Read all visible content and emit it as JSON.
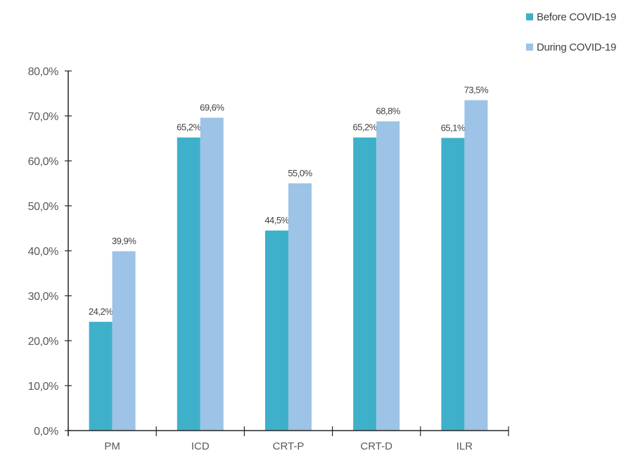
{
  "chart_data": {
    "type": "bar",
    "title": "",
    "xlabel": "",
    "ylabel": "",
    "categories": [
      "PM",
      "ICD",
      "CRT-P",
      "CRT-D",
      "ILR"
    ],
    "series": [
      {
        "name": "Before COVID-19",
        "color": "#3fb0c9",
        "values": [
          24.2,
          65.2,
          44.5,
          65.2,
          65.1
        ],
        "labels": [
          "24,2%",
          "65,2%",
          "44,5%",
          "65,2%",
          "65,1%"
        ]
      },
      {
        "name": "During COVID-19",
        "color": "#9dc3e6",
        "values": [
          39.9,
          69.6,
          55.0,
          68.8,
          73.5
        ],
        "labels": [
          "39,9%",
          "69,6%",
          "55,0%",
          "68,8%",
          "73,5%"
        ]
      }
    ],
    "ylim": [
      0,
      80
    ],
    "yticks": [
      0,
      10,
      20,
      30,
      40,
      50,
      60,
      70,
      80
    ],
    "ytick_labels": [
      "0,0%",
      "10,0%",
      "20,0%",
      "30,0%",
      "40,0%",
      "50,0%",
      "60,0%",
      "70,0%",
      "80,0%"
    ],
    "grid": false,
    "legend_position": "top-right"
  },
  "legend": {
    "items": [
      {
        "label": "Before COVID-19",
        "color": "#3fb0c9"
      },
      {
        "label": "During COVID-19",
        "color": "#9dc3e6"
      }
    ]
  }
}
